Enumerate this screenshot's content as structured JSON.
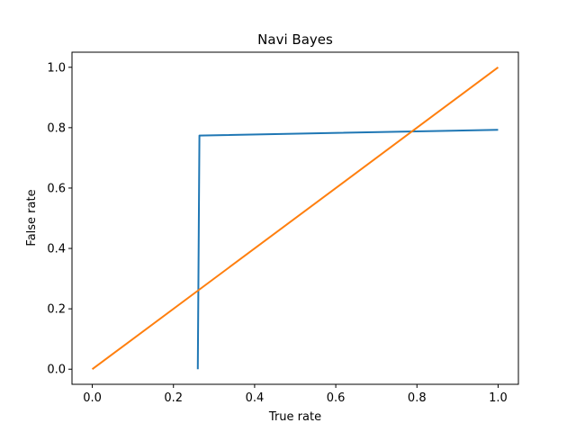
{
  "chart_data": {
    "type": "line",
    "title": "Navi Bayes",
    "xlabel": "True rate",
    "ylabel": "False rate",
    "xlim": [
      -0.05,
      1.05
    ],
    "ylim": [
      -0.05,
      1.05
    ],
    "xticks": [
      0.0,
      0.2,
      0.4,
      0.6,
      0.8,
      1.0
    ],
    "xtick_labels": [
      "0.0",
      "0.2",
      "0.4",
      "0.6",
      "0.8",
      "1.0"
    ],
    "yticks": [
      0.0,
      0.2,
      0.4,
      0.6,
      0.8,
      1.0
    ],
    "ytick_labels": [
      "0.0",
      "0.2",
      "0.4",
      "0.6",
      "0.8",
      "1.0"
    ],
    "grid": false,
    "series": [
      {
        "color": "#1f77b4",
        "x": [
          0.26,
          0.264,
          1.0
        ],
        "y": [
          0.0,
          0.774,
          0.793
        ]
      },
      {
        "color": "#ff7f0e",
        "x": [
          0.0,
          1.0
        ],
        "y": [
          0.0,
          1.0
        ]
      }
    ]
  }
}
